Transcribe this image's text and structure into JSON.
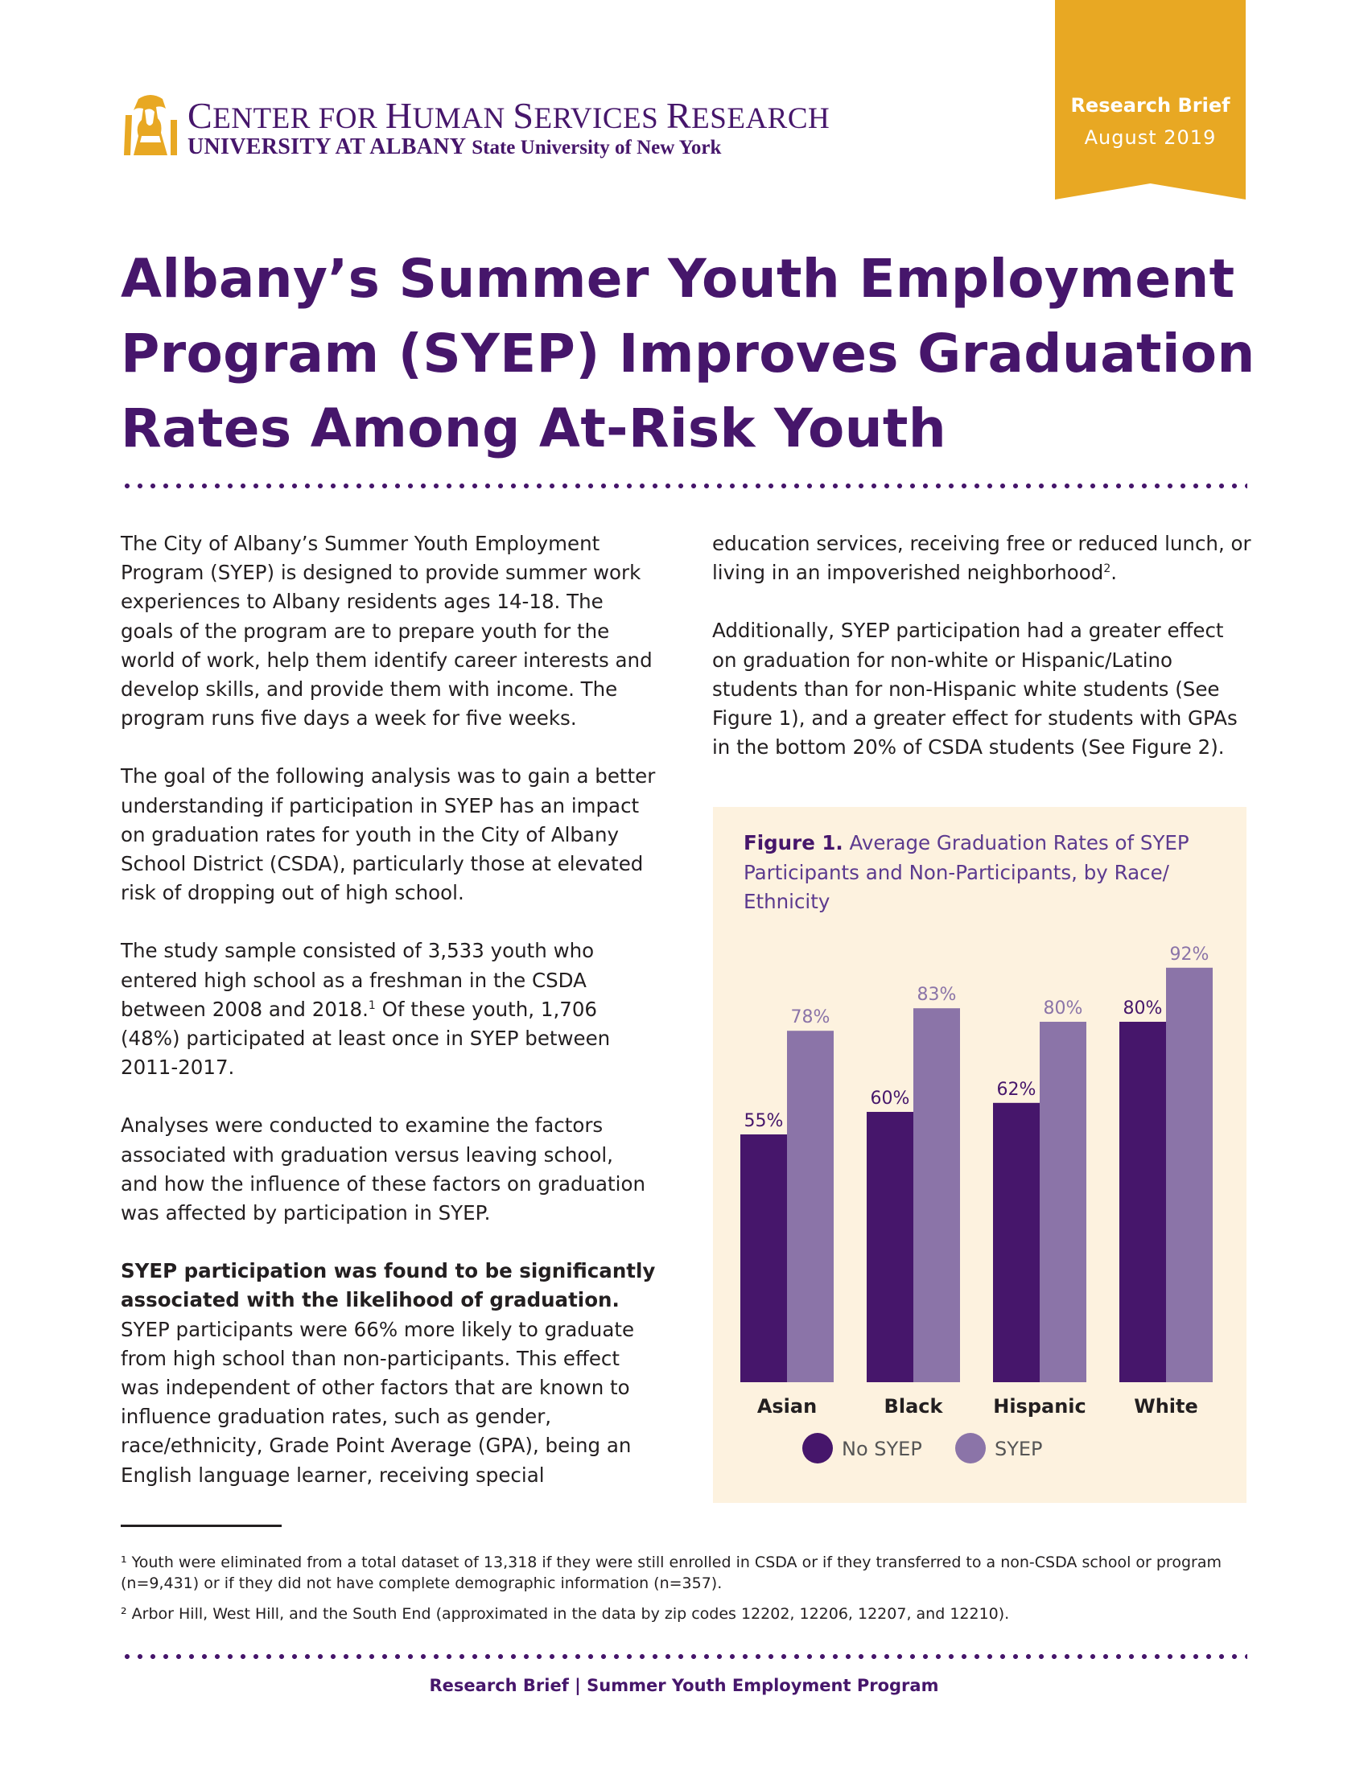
{
  "header": {
    "org_line1_c": "C",
    "org_line1_a": "ENTER FOR ",
    "org_line1_h": "H",
    "org_line1_b": "UMAN ",
    "org_line1_s": "S",
    "org_line1_c2": "ERVICES ",
    "org_line1_r": "R",
    "org_line1_d": "ESEARCH",
    "org_line2_bold": "UNIVERSITY AT ALBANY",
    "org_line2_suny": "State University of New York",
    "ribbon_label": "Research Brief",
    "ribbon_date": "August  2019"
  },
  "title": "Albany’s Summer Youth Employment Program (SYEP) Improves Graduation Rates Among At-Risk Youth",
  "body": {
    "p1": "The City of Albany’s Summer Youth Employment Program (SYEP) is designed to provide summer work experiences to Albany residents ages 14-18. The goals of the program are to prepare youth for the world of work, help them identify career interests and develop skills, and provide them with income. The program runs five days a week for five weeks.",
    "p2": "The goal of the following analysis was to gain a better understanding if participation in SYEP has an impact on graduation rates for youth in the City of Albany School District (CSDA), particularly those at elevated risk of dropping out of high school.",
    "p3a": "The study sample consisted of 3,533 youth who entered high school as a freshman in the CSDA between 2008 and 2018.",
    "p3_sup": "1",
    "p3b": " Of these youth, 1,706 (48%) participated at least once in SYEP between 2011-2017.",
    "p4": "Analyses were conducted to examine the factors associated with graduation versus leaving school, and how the influence of these factors on graduation was affected by participation in SYEP.",
    "p5_bold": "SYEP participation was found to be significantly associated with the likelihood of graduation.",
    "p5_rest": " SYEP participants were 66% more likely to graduate from high school than non-participants. This effect was independent of other factors that are known to influence graduation rates, such as gender, race/ethnicity, Grade Point Average (GPA), being an English language learner, receiving special",
    "r1a": "education services, receiving free or reduced lunch, or living in an impoverished neighborhood",
    "r1_sup": "2",
    "r1b": ".",
    "r2": "Additionally, SYEP participation had a greater effect on graduation for non-white or Hispanic/Latino students than for non-Hispanic white students (See Figure 1), and a greater effect for students with GPAs in the bottom 20% of CSDA students (See Figure 2)."
  },
  "figure": {
    "label": "Figure 1.",
    "caption": " Average Graduation Rates of SYEP Participants and Non-Participants, by Race/ Ethnicity"
  },
  "chart_data": {
    "type": "bar",
    "title": "Figure 1. Average Graduation Rates of SYEP Participants and Non-Participants, by Race/ Ethnicity",
    "categories": [
      "Asian",
      "Black",
      "Hispanic",
      "White"
    ],
    "series": [
      {
        "name": "No SYEP",
        "values": [
          55,
          60,
          62,
          80
        ],
        "labels": [
          "55%",
          "60%",
          "62%",
          "80%"
        ],
        "color": "#46166b"
      },
      {
        "name": "SYEP",
        "values": [
          78,
          83,
          80,
          92
        ],
        "labels": [
          "78%",
          "83%",
          "80%",
          "92%"
        ],
        "color": "#8b74a8"
      }
    ],
    "ylim": [
      0,
      100
    ],
    "grid": false,
    "legend": "bottom",
    "background": "#fdf2df"
  },
  "footnotes": {
    "f1": "¹ Youth were eliminated from a total dataset of 13,318 if they were still enrolled in CSDA or if they transferred to a non-CSDA school or program (n=9,431) or if they did not have complete demographic information (n=357).",
    "f2": "² Arbor Hill, West Hill, and the South End (approximated in the data by zip codes 12202, 12206, 12207, and 12210)."
  },
  "footer": "Research Brief  |  Summer Youth Employment Program",
  "colors": {
    "purple": "#46166b",
    "light_purple": "#8b74a8",
    "gold": "#e8a823",
    "panel": "#fdf2df"
  }
}
